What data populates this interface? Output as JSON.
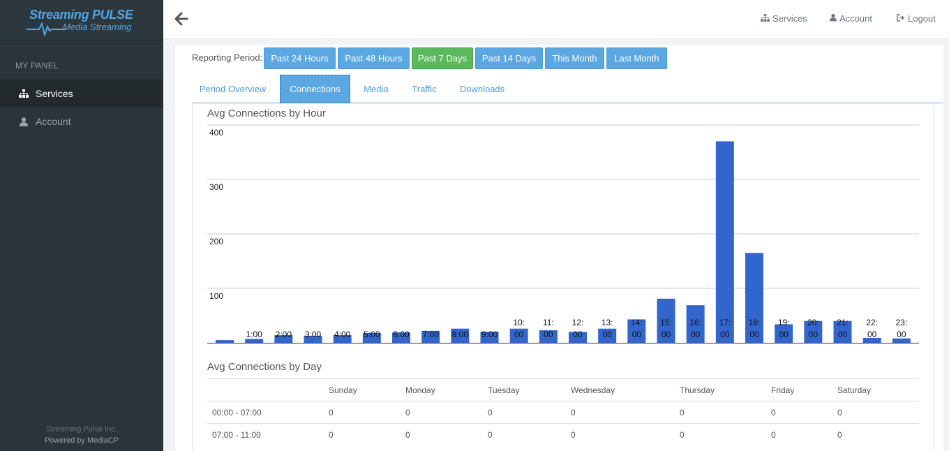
{
  "brand": {
    "line1": "Streaming PULSE",
    "line2": "Media Streaming",
    "color": "#4ea5e6"
  },
  "sidebar": {
    "heading": "MY PANEL",
    "items": [
      {
        "label": "Services",
        "icon": "sitemap-icon",
        "active": true
      },
      {
        "label": "Account",
        "icon": "user-icon",
        "active": false
      }
    ],
    "footer_company": "Streaming Pulse Inc.",
    "footer_powered": "Powered by MediaCP"
  },
  "topbar": {
    "services_label": "Services",
    "account_label": "Account",
    "logout_label": "Logout"
  },
  "reporting": {
    "label": "Reporting Period:",
    "periods": [
      "Past 24 Hours",
      "Past 48 Hours",
      "Past 7 Days",
      "Past 14 Days",
      "This Month",
      "Last Month"
    ],
    "active": "Past 7 Days"
  },
  "tabs": {
    "items": [
      "Period Overview",
      "Connections",
      "Media",
      "Traffic",
      "Downloads"
    ],
    "active": "Connections"
  },
  "hour_chart": {
    "title": "Avg Connections by Hour"
  },
  "chart_data": {
    "type": "bar",
    "title": "Avg Connections by Hour",
    "categories": [
      "",
      "1:00",
      "2:00",
      "3:00",
      "4:00",
      "5:00",
      "6:00",
      "7:00",
      "8:00",
      "9:00",
      "10:00",
      "11:00",
      "12:00",
      "13:00",
      "14:00",
      "15:00",
      "16:00",
      "17:00",
      "18:00",
      "19:00",
      "20:00",
      "21:00",
      "22:00",
      "23:00"
    ],
    "values": [
      5,
      7,
      14,
      13,
      14,
      18,
      19,
      22,
      26,
      20,
      26,
      23,
      20,
      26,
      43,
      81,
      69,
      370,
      165,
      34,
      40,
      40,
      9,
      8
    ],
    "yticks": [
      "100",
      "200",
      "300",
      "400"
    ],
    "ylim": [
      0,
      400
    ],
    "grid": true,
    "bar_color": "#3366cc"
  },
  "day_table": {
    "title": "Avg Connections by Day",
    "columns": [
      "",
      "Sunday",
      "Monday",
      "Tuesday",
      "Wednesday",
      "Thursday",
      "Friday",
      "Saturday"
    ],
    "rows": [
      [
        "00:00 - 07:00",
        "0",
        "0",
        "0",
        "0",
        "0",
        "0",
        "0"
      ],
      [
        "07:00 - 11:00",
        "0",
        "0",
        "0",
        "0",
        "0",
        "0",
        "0"
      ]
    ]
  }
}
